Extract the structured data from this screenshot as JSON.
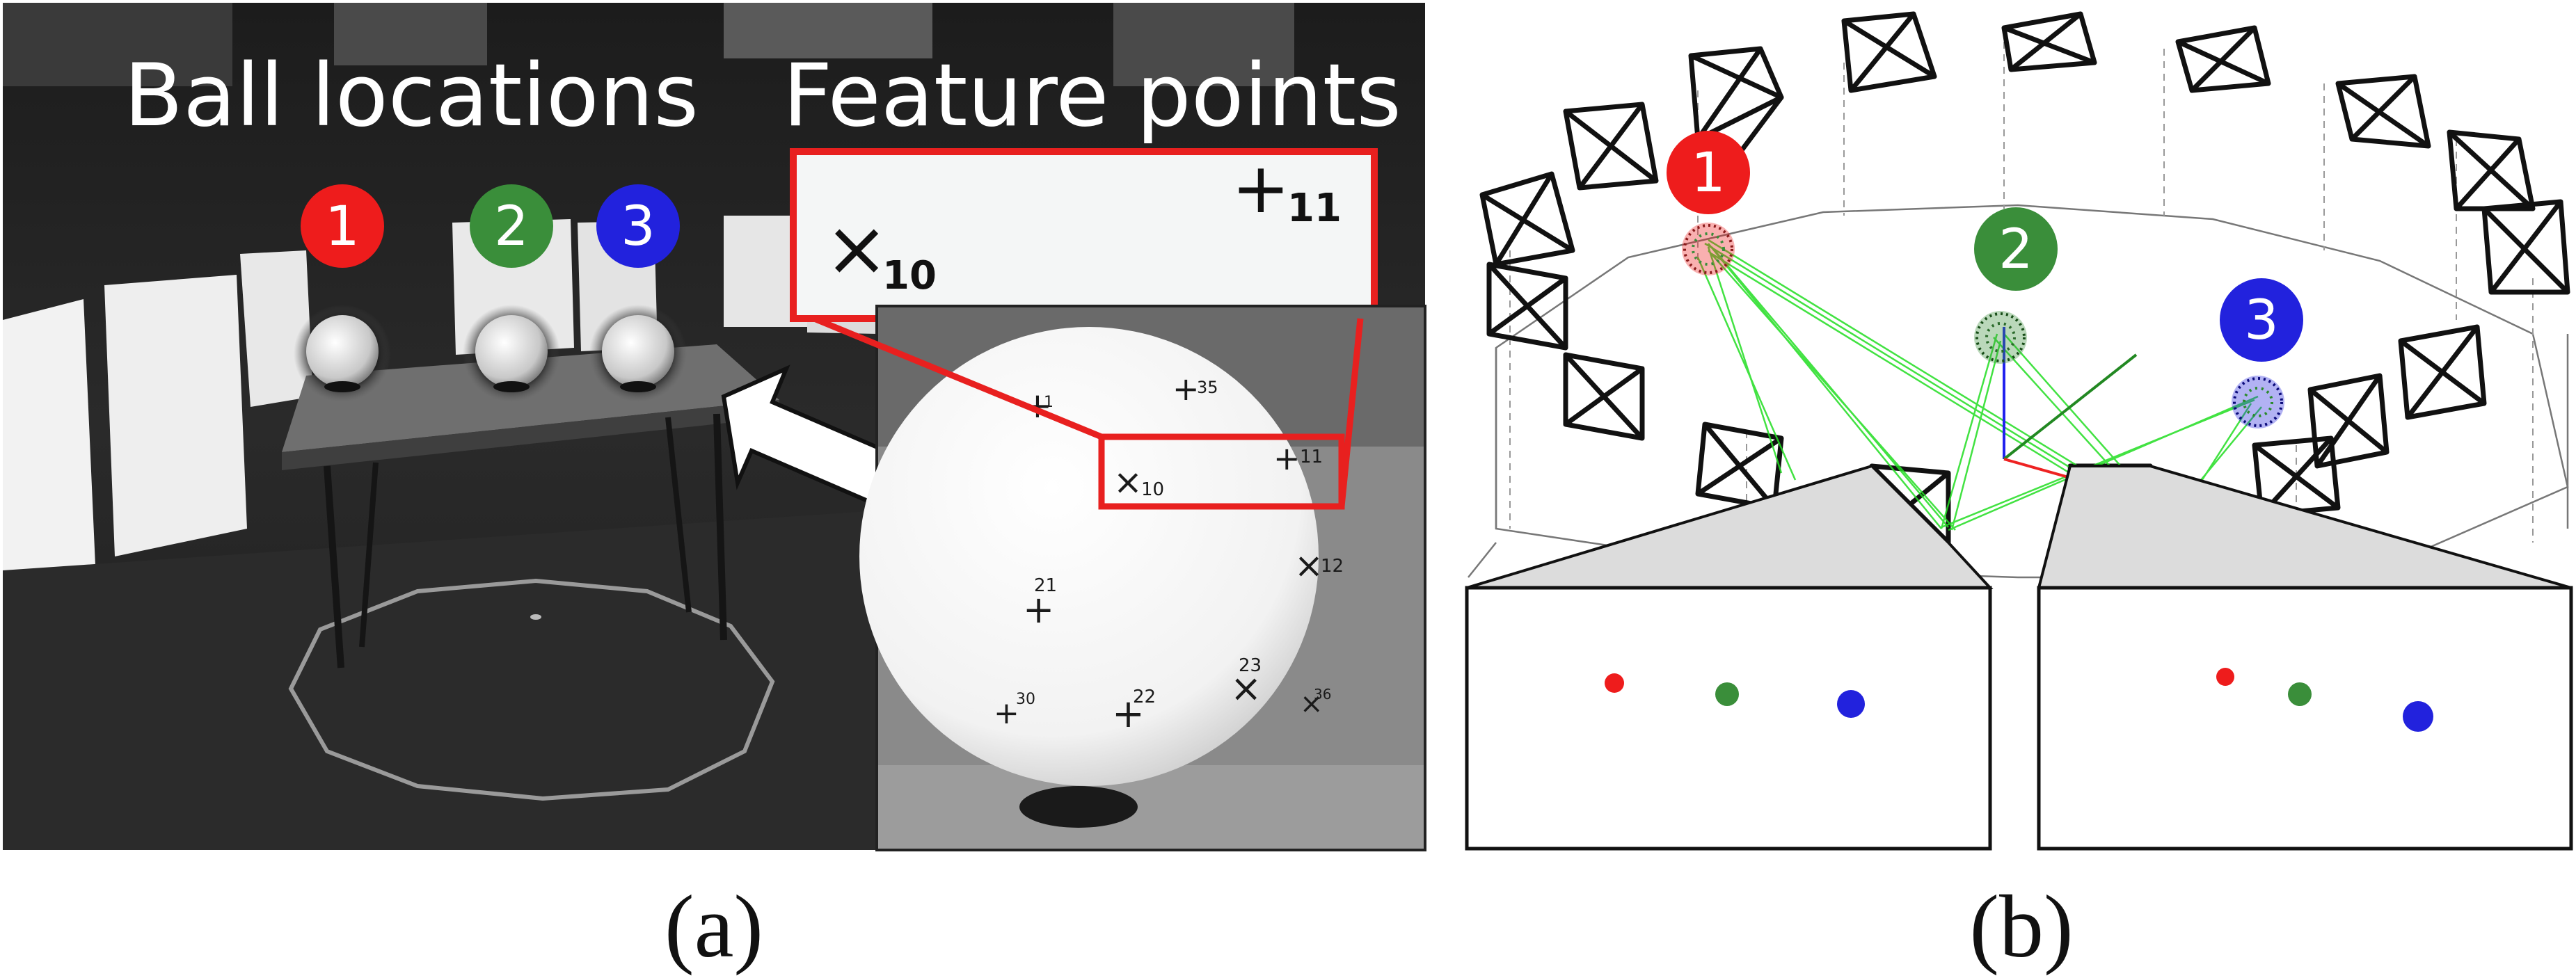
{
  "panel_a": {
    "title_ball_locations": "Ball locations",
    "title_feature_points": "Feature points",
    "ball_badges": [
      "1",
      "2",
      "3"
    ],
    "zoom_marks": [
      {
        "mark": "×",
        "number": "10"
      },
      {
        "mark": "+",
        "number": "11"
      }
    ],
    "sphere_markers": [
      {
        "mark": "+",
        "number": "1"
      },
      {
        "mark": "+",
        "number": "35"
      },
      {
        "mark": "×",
        "number": "10"
      },
      {
        "mark": "+",
        "number": "11"
      },
      {
        "mark": "+",
        "number": "21"
      },
      {
        "mark": "×",
        "number": "12"
      },
      {
        "mark": "+",
        "number": "30"
      },
      {
        "mark": "+",
        "number": "22"
      },
      {
        "mark": "×",
        "number": "23"
      },
      {
        "mark": "×",
        "number": "36"
      }
    ],
    "caption": "(a)"
  },
  "panel_b": {
    "ball_badges": [
      "1",
      "2",
      "3"
    ],
    "caption": "(b)"
  },
  "colors": {
    "ball1": "#ee1c1c",
    "ball2": "#3a8e3a",
    "ball3": "#2222dd",
    "callout_red": "#e8201f",
    "ray_green": "#22dd22"
  }
}
